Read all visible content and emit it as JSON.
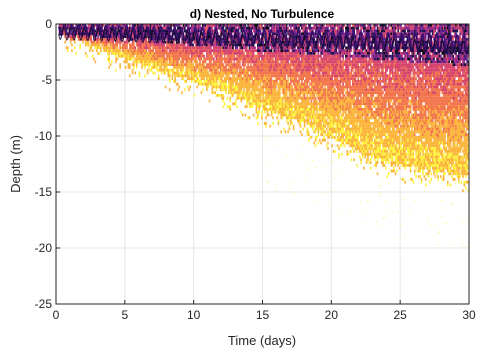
{
  "chart_data": {
    "type": "heatmap",
    "title": "d) Nested, No Turbulence",
    "xlabel": "Time (days)",
    "ylabel": "Depth (m)",
    "xlim": [
      0,
      30
    ],
    "ylim": [
      -25,
      0
    ],
    "x_ticks": [
      "0",
      "5",
      "10",
      "15",
      "20",
      "25",
      "30"
    ],
    "y_ticks": [
      "0",
      "-5",
      "-10",
      "-15",
      "-20",
      "-25"
    ],
    "grid": true,
    "colormap": [
      "#fdf33f",
      "#fbb53c",
      "#f2754c",
      "#d6456e",
      "#a22a85",
      "#5f1d8c",
      "#1a1147",
      "#000004"
    ],
    "plume_front": [
      {
        "t": 0.3,
        "depth": -0.8
      },
      {
        "t": 1.0,
        "depth": -1.3
      },
      {
        "t": 2.0,
        "depth": -1.5
      },
      {
        "t": 3.0,
        "depth": -2.0
      },
      {
        "t": 5.0,
        "depth": -3.0
      },
      {
        "t": 7.5,
        "depth": -4.0
      },
      {
        "t": 10.0,
        "depth": -5.0
      },
      {
        "t": 12.5,
        "depth": -6.0
      },
      {
        "t": 15.0,
        "depth": -7.5
      },
      {
        "t": 17.5,
        "depth": -8.5
      },
      {
        "t": 20.0,
        "depth": -10.0
      },
      {
        "t": 22.5,
        "depth": -11.5
      },
      {
        "t": 25.0,
        "depth": -12.5
      },
      {
        "t": 27.5,
        "depth": -13.0
      },
      {
        "t": 30.0,
        "depth": -13.5
      }
    ],
    "dense_core": [
      {
        "t": 1.0,
        "depth": -0.8
      },
      {
        "t": 5.0,
        "depth": -1.3
      },
      {
        "t": 10.0,
        "depth": -1.8
      },
      {
        "t": 15.0,
        "depth": -2.3
      },
      {
        "t": 20.0,
        "depth": -2.7
      },
      {
        "t": 25.0,
        "depth": -3.2
      },
      {
        "t": 30.0,
        "depth": -3.6
      }
    ],
    "surface_oscillation": {
      "period_days": 0.5,
      "amplitude_m": 0.8,
      "mean_depth_start": -0.5,
      "mean_depth_end": -1.8
    }
  }
}
